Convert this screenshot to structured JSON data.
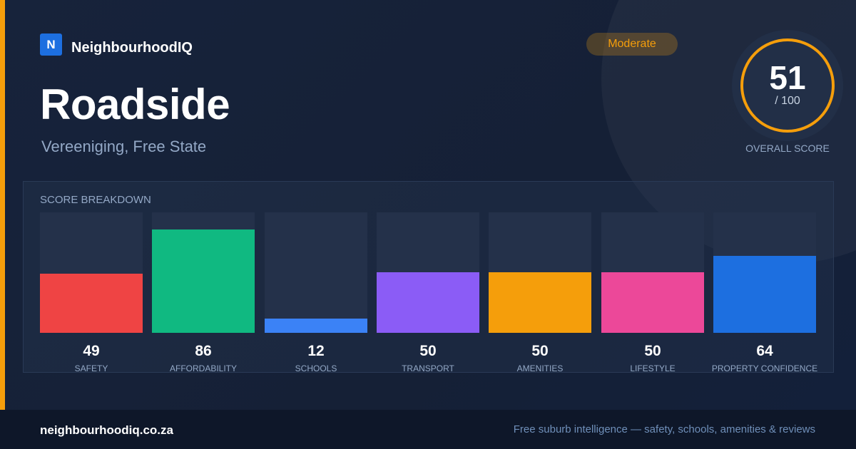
{
  "brand": {
    "logo_letter": "N",
    "name": "NeighbourhoodIQ",
    "color": "#1d6fe0"
  },
  "suburb": {
    "name": "Roadside",
    "location": "Vereeniging, Free State"
  },
  "badge": {
    "label": "Moderate",
    "color": "#f59e0b"
  },
  "overall": {
    "score": "51",
    "max": "/ 100",
    "label": "OVERALL SCORE",
    "ring_color": "#f59e0b",
    "accent_color": "#f59e0b"
  },
  "breakdown": {
    "title": "SCORE BREAKDOWN",
    "items": [
      {
        "label": "SAFETY",
        "value": "49",
        "score": 49,
        "color": "#ef4444"
      },
      {
        "label": "AFFORDABILITY",
        "value": "86",
        "score": 86,
        "color": "#10b981"
      },
      {
        "label": "SCHOOLS",
        "value": "12",
        "score": 12,
        "color": "#3b82f6"
      },
      {
        "label": "TRANSPORT",
        "value": "50",
        "score": 50,
        "color": "#8b5cf6"
      },
      {
        "label": "AMENITIES",
        "value": "50",
        "score": 50,
        "color": "#f59e0b"
      },
      {
        "label": "LIFESTYLE",
        "value": "50",
        "score": 50,
        "color": "#ec4899"
      },
      {
        "label": "PROPERTY CONFIDENCE",
        "value": "64",
        "score": 64,
        "color": "#1d6fe0"
      }
    ]
  },
  "footer": {
    "url": "neighbourhoodiq.co.za",
    "tagline": "Free suburb intelligence — safety, schools, amenities & reviews"
  }
}
